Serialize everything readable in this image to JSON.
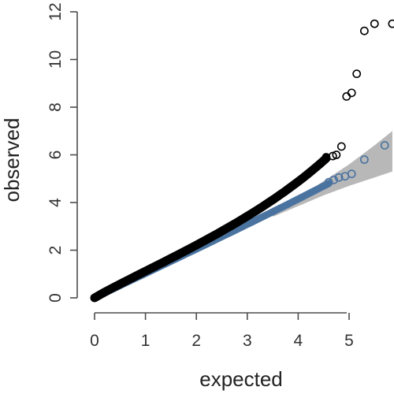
{
  "chart_data": {
    "type": "scatter",
    "title": "",
    "xlabel": "expected",
    "ylabel": "observed",
    "xlim": [
      0,
      5.85
    ],
    "ylim": [
      0,
      12
    ],
    "x_ticks": [
      "0",
      "1",
      "2",
      "3",
      "4",
      "5"
    ],
    "y_ticks": [
      "0",
      "2",
      "4",
      "6",
      "8",
      "10",
      "12"
    ],
    "grid": false,
    "legend": "none",
    "confidence_band": {
      "color": "#b8b8b8",
      "points": [
        {
          "x": 3.5,
          "lower": 3.4,
          "upper": 3.6
        },
        {
          "x": 4.0,
          "lower": 3.85,
          "upper": 4.2
        },
        {
          "x": 4.5,
          "lower": 4.3,
          "upper": 4.9
        },
        {
          "x": 5.0,
          "lower": 4.7,
          "upper": 5.6
        },
        {
          "x": 5.5,
          "lower": 5.05,
          "upper": 6.4
        },
        {
          "x": 5.85,
          "lower": 5.3,
          "upper": 7.0
        }
      ]
    },
    "series": [
      {
        "color": "#4a73a0",
        "dense_segment": {
          "x": [
            0.0,
            4.6
          ],
          "y": [
            0.0,
            4.8
          ],
          "curve": 0.12
        },
        "points": [
          {
            "x": 4.6,
            "y": 4.85
          },
          {
            "x": 4.7,
            "y": 4.95
          },
          {
            "x": 4.8,
            "y": 5.05
          },
          {
            "x": 4.92,
            "y": 5.1
          },
          {
            "x": 5.05,
            "y": 5.2
          },
          {
            "x": 5.3,
            "y": 5.8
          },
          {
            "x": 5.7,
            "y": 6.4
          }
        ]
      },
      {
        "color": "#000000",
        "dense_segment": {
          "x": [
            0.0,
            4.55
          ],
          "y": [
            0.0,
            5.85
          ],
          "curve": 0.35
        },
        "points": [
          {
            "x": 4.55,
            "y": 5.9
          },
          {
            "x": 4.68,
            "y": 5.95
          },
          {
            "x": 4.75,
            "y": 6.0
          },
          {
            "x": 4.85,
            "y": 6.35
          },
          {
            "x": 4.95,
            "y": 8.45
          },
          {
            "x": 5.05,
            "y": 8.6
          },
          {
            "x": 5.15,
            "y": 9.4
          },
          {
            "x": 5.3,
            "y": 11.2
          },
          {
            "x": 5.5,
            "y": 11.5
          },
          {
            "x": 5.85,
            "y": 11.5
          }
        ]
      }
    ]
  }
}
